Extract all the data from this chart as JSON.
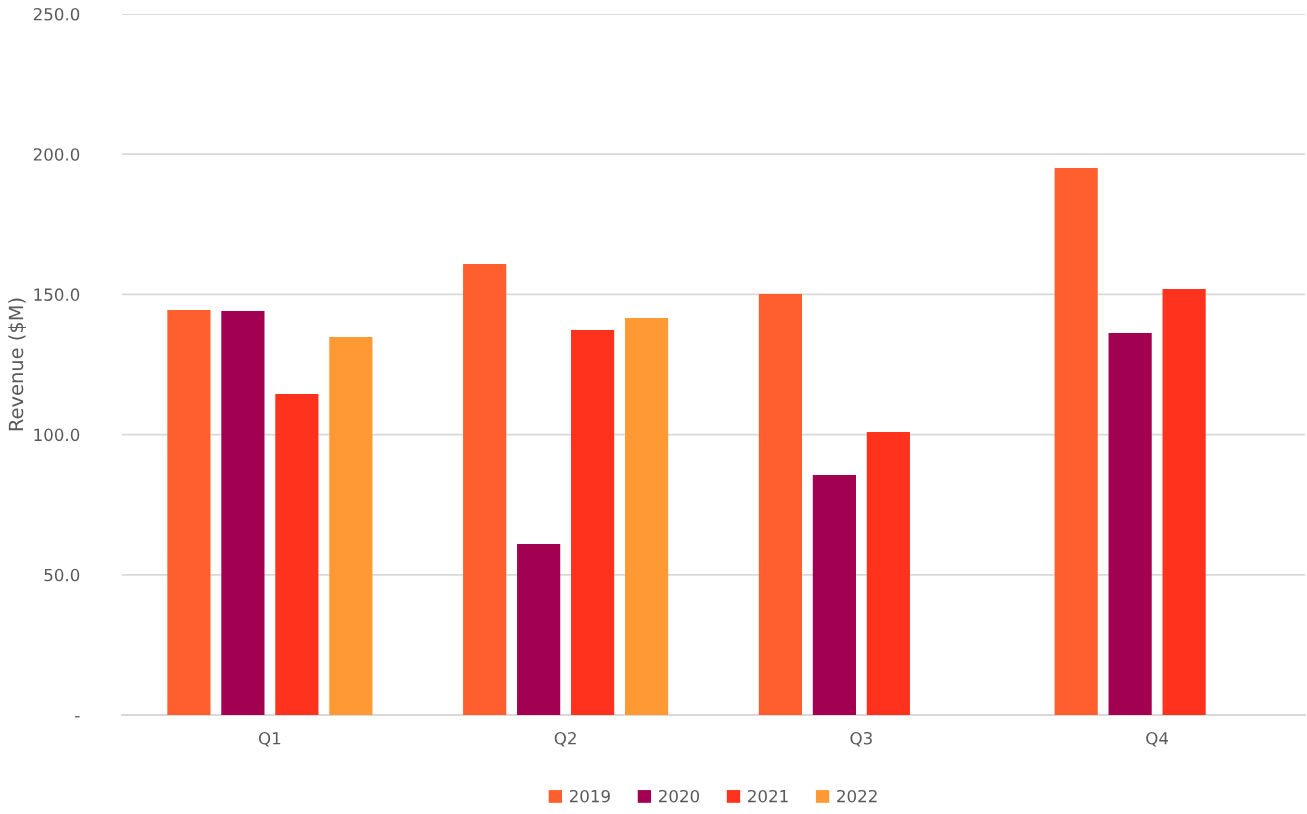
{
  "chart_data": {
    "type": "bar",
    "ylabel": "Revenue ($M)",
    "categories": [
      "Q1",
      "Q2",
      "Q3",
      "Q4"
    ],
    "series": [
      {
        "name": "2019",
        "color": "#ff5f2e",
        "values": [
          144.4,
          160.8,
          150.1,
          195.1
        ]
      },
      {
        "name": "2020",
        "color": "#a20050",
        "values": [
          144.1,
          61.0,
          85.6,
          136.2
        ]
      },
      {
        "name": "2021",
        "color": "#ff321e",
        "values": [
          114.5,
          137.3,
          100.9,
          151.9
        ]
      },
      {
        "name": "2022",
        "color": "#ff9933",
        "values": [
          134.8,
          141.6,
          null,
          null
        ]
      }
    ],
    "ylim": [
      0,
      250
    ],
    "yticks": [
      {
        "value": 0,
        "label": "-"
      },
      {
        "value": 50,
        "label": "50.0"
      },
      {
        "value": 100,
        "label": "100.0"
      },
      {
        "value": 150,
        "label": "150.0"
      },
      {
        "value": 200,
        "label": "200.0"
      },
      {
        "value": 250,
        "label": "250.0"
      }
    ],
    "grid": "y",
    "legend": "bottom"
  }
}
